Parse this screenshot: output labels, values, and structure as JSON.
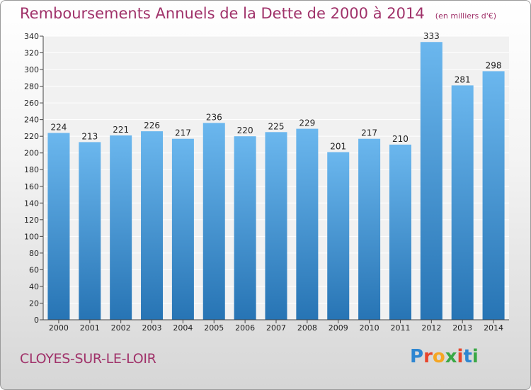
{
  "header": {
    "title": "Remboursements Annuels de la Dette de 2000 à 2014",
    "subtitle": "(en milliers d'€)"
  },
  "footer": {
    "commune": "CLOYES-SUR-LE-LOIR",
    "brand": "Proxiti",
    "brand_colors": [
      "#2e86d1",
      "#e8452c",
      "#f5a623",
      "#3aa845",
      "#e8452c",
      "#2e86d1",
      "#3aa845"
    ]
  },
  "colors": {
    "bar_light": "#6bb7ee",
    "bar_dark": "#2774b4",
    "text_accent": "#a0326a"
  },
  "chart_data": {
    "type": "bar",
    "title": "Remboursements Annuels de la Dette de 2000 à 2014",
    "subtitle": "(en milliers d'€)",
    "categories": [
      "2000",
      "2001",
      "2002",
      "2003",
      "2004",
      "2005",
      "2006",
      "2007",
      "2008",
      "2009",
      "2010",
      "2011",
      "2012",
      "2013",
      "2014"
    ],
    "values": [
      224,
      213,
      221,
      226,
      217,
      236,
      220,
      225,
      229,
      201,
      217,
      210,
      333,
      281,
      298
    ],
    "yticks": [
      0,
      20,
      40,
      60,
      80,
      100,
      120,
      140,
      160,
      180,
      200,
      220,
      240,
      260,
      280,
      300,
      320,
      340
    ],
    "ylim": [
      0,
      340
    ],
    "grid": true,
    "legend": "none"
  }
}
